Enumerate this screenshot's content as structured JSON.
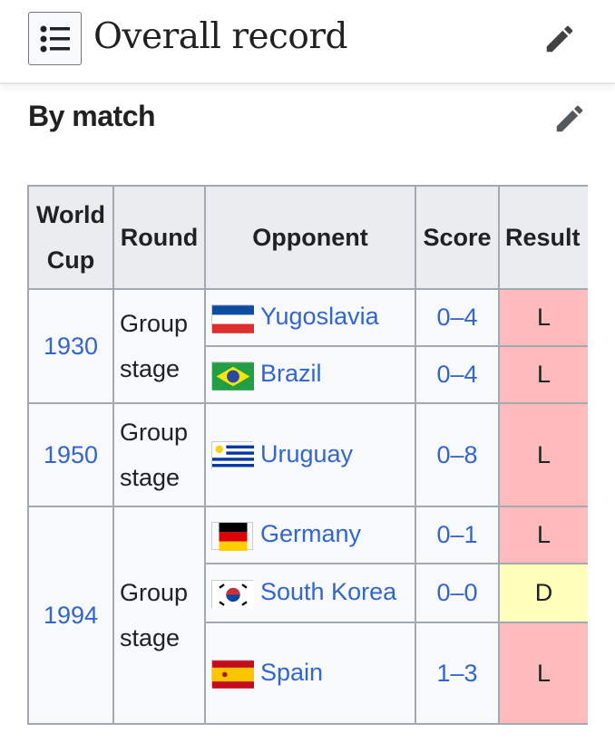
{
  "header": {
    "title": "Overall record",
    "toc_icon": "list-icon",
    "edit_icon": "pencil-icon"
  },
  "section": {
    "title": "By match",
    "edit_icon": "pencil-icon"
  },
  "table": {
    "headers": [
      "World Cup",
      "Round",
      "Opponent",
      "Score",
      "Result"
    ],
    "groups": [
      {
        "year": "1930",
        "round": "Group stage",
        "matches": [
          {
            "opponent": "Yugoslavia",
            "flag": "yugoslavia",
            "score": "0–4",
            "result": "L"
          },
          {
            "opponent": "Brazil",
            "flag": "brazil",
            "score": "0–4",
            "result": "L"
          }
        ]
      },
      {
        "year": "1950",
        "round": "Group stage",
        "matches": [
          {
            "opponent": "Uruguay",
            "flag": "uruguay",
            "score": "0–8",
            "result": "L"
          }
        ]
      },
      {
        "year": "1994",
        "round": "Group stage",
        "matches": [
          {
            "opponent": "Germany",
            "flag": "germany",
            "score": "0–1",
            "result": "L"
          },
          {
            "opponent": "South Korea",
            "flag": "south-korea",
            "score": "0–0",
            "result": "D"
          },
          {
            "opponent": "Spain",
            "flag": "spain",
            "score": "1–3",
            "result": "L"
          }
        ]
      }
    ]
  },
  "colors": {
    "link": "#3366cc",
    "loss": "#ffbbbb",
    "draw": "#ffffbb",
    "header_bg": "#eaecf0"
  }
}
